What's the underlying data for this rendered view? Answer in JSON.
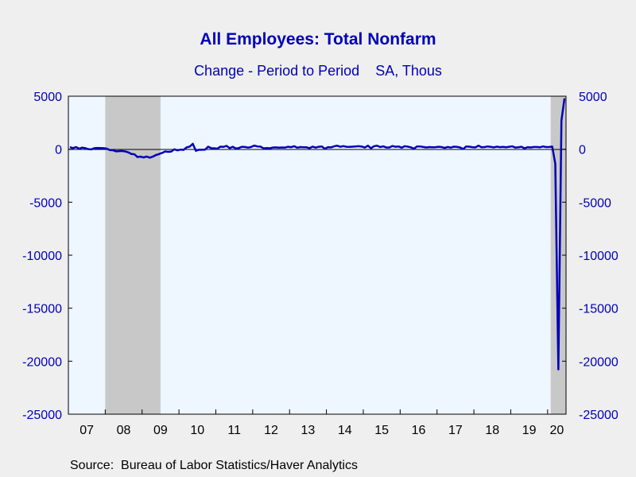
{
  "chart_data": {
    "type": "line",
    "title": "All Employees: Total Nonfarm",
    "subtitle": "Change - Period to Period    SA, Thous",
    "source": "Source:  Bureau of Labor Statistics/Haver Analytics",
    "xlabel": "",
    "ylabel": "",
    "ylim": [
      -25000,
      5000
    ],
    "y_ticks": [
      5000,
      0,
      -5000,
      -10000,
      -15000,
      -20000,
      -25000
    ],
    "y_tick_labels": [
      "5000",
      "0",
      "-5000",
      "-10000",
      "-15000",
      "-20000",
      "-25000"
    ],
    "y_axes": [
      "left",
      "right"
    ],
    "x_tick_labels": [
      "07",
      "08",
      "09",
      "10",
      "11",
      "12",
      "13",
      "14",
      "15",
      "16",
      "17",
      "18",
      "19",
      "20"
    ],
    "x_range": [
      "2007-01",
      "2020-06"
    ],
    "grid": false,
    "recessions": [
      {
        "start": "2008-01",
        "end": "2009-06"
      },
      {
        "start": "2020-02",
        "end": "2020-06"
      }
    ],
    "series": [
      {
        "color": "#0000b8",
        "x": [
          "2007-01",
          "2007-02",
          "2007-03",
          "2007-04",
          "2007-05",
          "2007-06",
          "2007-07",
          "2007-08",
          "2007-09",
          "2007-10",
          "2007-11",
          "2007-12",
          "2008-01",
          "2008-02",
          "2008-03",
          "2008-04",
          "2008-05",
          "2008-06",
          "2008-07",
          "2008-08",
          "2008-09",
          "2008-10",
          "2008-11",
          "2008-12",
          "2009-01",
          "2009-02",
          "2009-03",
          "2009-04",
          "2009-05",
          "2009-06",
          "2009-07",
          "2009-08",
          "2009-09",
          "2009-10",
          "2009-11",
          "2009-12",
          "2010-01",
          "2010-02",
          "2010-03",
          "2010-04",
          "2010-05",
          "2010-06",
          "2010-07",
          "2010-08",
          "2010-09",
          "2010-10",
          "2010-11",
          "2010-12",
          "2011-01",
          "2011-02",
          "2011-03",
          "2011-04",
          "2011-05",
          "2011-06",
          "2011-07",
          "2011-08",
          "2011-09",
          "2011-10",
          "2011-11",
          "2011-12",
          "2012-01",
          "2012-02",
          "2012-03",
          "2012-04",
          "2012-05",
          "2012-06",
          "2012-07",
          "2012-08",
          "2012-09",
          "2012-10",
          "2012-11",
          "2012-12",
          "2013-01",
          "2013-02",
          "2013-03",
          "2013-04",
          "2013-05",
          "2013-06",
          "2013-07",
          "2013-08",
          "2013-09",
          "2013-10",
          "2013-11",
          "2013-12",
          "2014-01",
          "2014-02",
          "2014-03",
          "2014-04",
          "2014-05",
          "2014-06",
          "2014-07",
          "2014-08",
          "2014-09",
          "2014-10",
          "2014-11",
          "2014-12",
          "2015-01",
          "2015-02",
          "2015-03",
          "2015-04",
          "2015-05",
          "2015-06",
          "2015-07",
          "2015-08",
          "2015-09",
          "2015-10",
          "2015-11",
          "2015-12",
          "2016-01",
          "2016-02",
          "2016-03",
          "2016-04",
          "2016-05",
          "2016-06",
          "2016-07",
          "2016-08",
          "2016-09",
          "2016-10",
          "2016-11",
          "2016-12",
          "2017-01",
          "2017-02",
          "2017-03",
          "2017-04",
          "2017-05",
          "2017-06",
          "2017-07",
          "2017-08",
          "2017-09",
          "2017-10",
          "2017-11",
          "2017-12",
          "2018-01",
          "2018-02",
          "2018-03",
          "2018-04",
          "2018-05",
          "2018-06",
          "2018-07",
          "2018-08",
          "2018-09",
          "2018-10",
          "2018-11",
          "2018-12",
          "2019-01",
          "2019-02",
          "2019-03",
          "2019-04",
          "2019-05",
          "2019-06",
          "2019-07",
          "2019-08",
          "2019-09",
          "2019-10",
          "2019-11",
          "2019-12",
          "2020-01",
          "2020-02",
          "2020-03",
          "2020-04",
          "2020-05",
          "2020-06"
        ],
        "values": [
          200,
          100,
          200,
          50,
          150,
          100,
          0,
          -20,
          100,
          120,
          110,
          100,
          50,
          -80,
          -100,
          -200,
          -180,
          -170,
          -210,
          -300,
          -450,
          -480,
          -740,
          -700,
          -780,
          -690,
          -800,
          -700,
          -550,
          -460,
          -350,
          -210,
          -250,
          -220,
          -10,
          -110,
          -40,
          -60,
          170,
          240,
          510,
          -150,
          -50,
          -50,
          -40,
          240,
          100,
          90,
          50,
          240,
          220,
          310,
          100,
          230,
          70,
          110,
          230,
          210,
          150,
          210,
          340,
          260,
          250,
          80,
          110,
          90,
          150,
          170,
          140,
          160,
          150,
          230,
          190,
          280,
          140,
          200,
          180,
          180,
          100,
          240,
          150,
          230,
          260,
          40,
          190,
          170,
          270,
          330,
          230,
          290,
          230,
          220,
          240,
          260,
          280,
          250,
          160,
          330,
          90,
          280,
          330,
          200,
          270,
          160,
          160,
          300,
          230,
          260,
          140,
          280,
          240,
          170,
          50,
          260,
          260,
          210,
          160,
          200,
          180,
          190,
          230,
          200,
          120,
          210,
          150,
          240,
          220,
          160,
          20,
          260,
          240,
          190,
          170,
          330,
          180,
          200,
          260,
          220,
          170,
          240,
          190,
          220,
          180,
          230,
          270,
          150,
          180,
          230,
          80,
          190,
          160,
          210,
          210,
          180,
          260,
          200,
          210,
          250,
          -1370,
          -20780,
          2700,
          4800
        ]
      }
    ]
  }
}
